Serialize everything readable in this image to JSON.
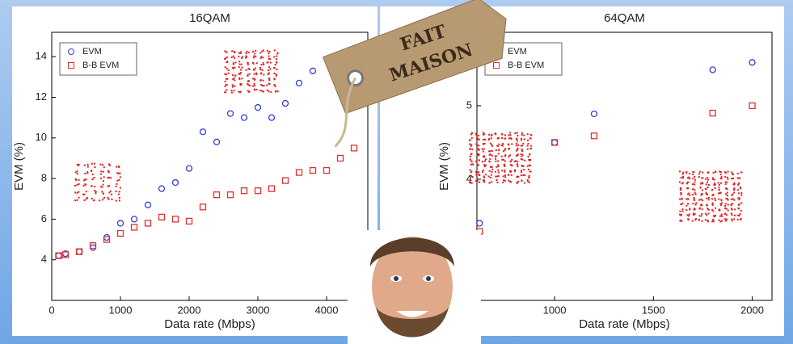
{
  "chart_data": [
    {
      "type": "scatter",
      "title": "16QAM",
      "x_label": "Data rate (Mbps)",
      "y_label": "EVM (%)",
      "legend": "upper left",
      "xlim": [
        0,
        4600
      ],
      "ylim": [
        2,
        15.2
      ],
      "xticks": [
        0,
        1000,
        2000,
        3000,
        4000
      ],
      "yticks": [
        4,
        6,
        8,
        10,
        12,
        14
      ],
      "series": [
        {
          "name": "EVM",
          "color": "#3040d8",
          "marker": "circle",
          "x": [
            100,
            200,
            400,
            600,
            800,
            1000,
            1200,
            1400,
            1600,
            1800,
            2000,
            2200,
            2400,
            2600,
            2800,
            3000,
            3200,
            3400,
            3600,
            3800
          ],
          "values": [
            4.2,
            4.3,
            4.4,
            4.6,
            5.1,
            5.8,
            6.0,
            6.7,
            7.5,
            7.8,
            8.5,
            10.3,
            9.8,
            11.2,
            11.0,
            11.5,
            11.0,
            11.7,
            12.7,
            13.3
          ]
        },
        {
          "name": "B-B EVM",
          "color": "#e03030",
          "marker": "square",
          "x": [
            100,
            200,
            400,
            600,
            800,
            1000,
            1200,
            1400,
            1600,
            1800,
            2000,
            2200,
            2400,
            2600,
            2800,
            3000,
            3200,
            3400,
            3600,
            3800,
            4000,
            4200,
            4400
          ],
          "values": [
            4.2,
            4.25,
            4.4,
            4.7,
            5.0,
            5.3,
            5.6,
            5.8,
            6.1,
            6.0,
            5.9,
            6.6,
            7.2,
            7.2,
            7.4,
            7.4,
            7.5,
            7.9,
            8.3,
            8.4,
            8.4,
            9.0,
            9.5
          ]
        }
      ]
    },
    {
      "type": "scatter",
      "title": "64QAM",
      "x_label": "Data rate (Mbps)",
      "y_label": "EVM (%)",
      "legend": "upper left",
      "xlim": [
        607,
        2100
      ],
      "ylim": [
        2.35,
        6.0
      ],
      "xticks": [
        1000,
        1500,
        2000
      ],
      "yticks": [
        4,
        5
      ],
      "series": [
        {
          "name": "EVM",
          "color": "#3040d8",
          "marker": "circle",
          "x": [
            620,
            1000,
            1200,
            1800,
            2000
          ],
          "values": [
            3.4,
            4.5,
            4.89,
            5.49,
            5.59
          ]
        },
        {
          "name": "B-B EVM",
          "color": "#e03030",
          "marker": "square",
          "x": [
            620,
            1000,
            1200,
            1800,
            2000
          ],
          "values": [
            3.29,
            4.5,
            4.59,
            4.9,
            5.0
          ]
        }
      ]
    }
  ],
  "overlay": {
    "tag": [
      "FAIT",
      "MAISON"
    ]
  }
}
